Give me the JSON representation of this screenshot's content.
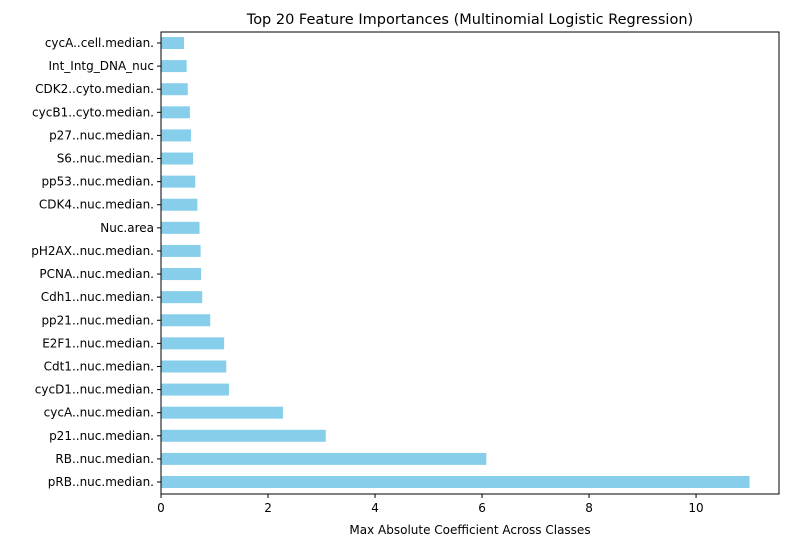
{
  "chart_data": {
    "type": "bar",
    "orientation": "horizontal",
    "title": "Top 20 Feature Importances (Multinomial Logistic Regression)",
    "xlabel": "Max Absolute Coefficient Across Classes",
    "ylabel": "",
    "xlim": [
      0,
      11.55
    ],
    "xticks": [
      0,
      2,
      4,
      6,
      8,
      10
    ],
    "grid": false,
    "bar_color": "#87ceeb",
    "categories": [
      "cycA..cell.median.",
      "Int_Intg_DNA_nuc",
      "CDK2..cyto.median.",
      "cycB1..cyto.median.",
      "p27..nuc.median.",
      "S6..nuc.median.",
      "pp53..nuc.median.",
      "CDK4..nuc.median.",
      "Nuc.area",
      "pH2AX..nuc.median.",
      "PCNA..nuc.median.",
      "Cdh1..nuc.median.",
      "pp21..nuc.median.",
      "E2F1..nuc.median.",
      "Cdt1..nuc.median.",
      "cycD1..nuc.median.",
      "cycA..nuc.median.",
      "p21..nuc.median.",
      "RB..nuc.median.",
      "pRB..nuc.median."
    ],
    "values": [
      0.43,
      0.48,
      0.5,
      0.54,
      0.56,
      0.6,
      0.64,
      0.68,
      0.72,
      0.74,
      0.75,
      0.77,
      0.92,
      1.18,
      1.22,
      1.27,
      2.28,
      3.08,
      6.08,
      11.0
    ]
  }
}
